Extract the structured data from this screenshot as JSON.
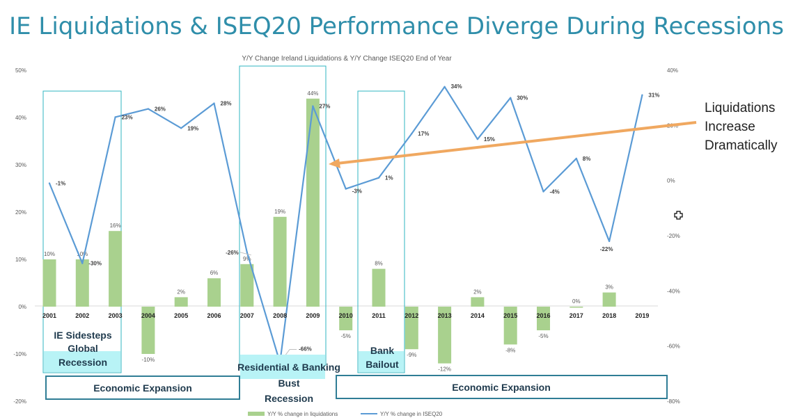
{
  "headline": "IE Liquidations & ISEQ20 Performance Diverge During Recessions",
  "colors": {
    "headline": "#2f8eaa",
    "bar": "#a9d18e",
    "line": "#5b9bd5",
    "trend_arrow": "#f0a860",
    "box_border": "#2fb6c0",
    "banner_border": "#2f7d95",
    "text_dark": "#1f3a4d",
    "axis_text": "#595959"
  },
  "chart_data": {
    "type": "bar",
    "title": "Y/Y Change Ireland Liquidations & Y/Y Change ISEQ20 End of Year",
    "categories": [
      "2001",
      "2002",
      "2003",
      "2004",
      "2005",
      "2006",
      "2007",
      "2008",
      "2009",
      "2010",
      "2011",
      "2012",
      "2013",
      "2014",
      "2015",
      "2016",
      "2017",
      "2018",
      "2019"
    ],
    "series": [
      {
        "name": "Y/Y % change in liquidations",
        "type": "bar",
        "axis": "left",
        "values": [
          10,
          10,
          16,
          -10,
          2,
          6,
          9,
          19,
          44,
          -5,
          8,
          -9,
          -12,
          2,
          -8,
          -5,
          0,
          3,
          null
        ],
        "labels": [
          "10%",
          "10%",
          "16%",
          "-10%",
          "2%",
          "6%",
          "9%",
          "19%",
          "44%",
          "-5%",
          "8%",
          "-9%",
          "-12%",
          "2%",
          "-8%",
          "-5%",
          "0%",
          "3%",
          ""
        ]
      },
      {
        "name": "Y/Y % change in ISEQ20",
        "type": "line",
        "axis": "right",
        "values": [
          -1,
          -30,
          23,
          26,
          19,
          28,
          -26,
          -66,
          27,
          -3,
          1,
          17,
          34,
          15,
          30,
          -4,
          8,
          -22,
          31
        ],
        "labels": [
          "-1%",
          "-30%",
          "23%",
          "26%",
          "19%",
          "28%",
          "-26%",
          "-66%",
          "27%",
          "-3%",
          "1%",
          "17%",
          "34%",
          "15%",
          "30%",
          "-4%",
          "8%",
          "-22%",
          "31%"
        ]
      }
    ],
    "left_axis": {
      "ylim": [
        -20,
        50
      ],
      "ticks": [
        "-20%",
        "-10%",
        "0%",
        "10%",
        "20%",
        "30%",
        "40%",
        "50%"
      ]
    },
    "right_axis": {
      "ylim": [
        -80,
        40
      ],
      "ticks": [
        "-80%",
        "-60%",
        "-40%",
        "-20%",
        "0%",
        "20%",
        "40%"
      ]
    },
    "legend_position": "bottom",
    "grid": false
  },
  "annotations": {
    "liquidations_note": [
      "Liquidations",
      "Increase",
      "Dramatically"
    ],
    "box1_text": [
      "IE Sidesteps",
      "Global",
      "Recession"
    ],
    "box2_text": [
      "Residential & Banking",
      "Bust",
      "Recession"
    ],
    "box3_text": [
      "Bank",
      "Bailout"
    ],
    "banner_left": "Economic Expansion",
    "banner_right": "Economic Expansion"
  }
}
